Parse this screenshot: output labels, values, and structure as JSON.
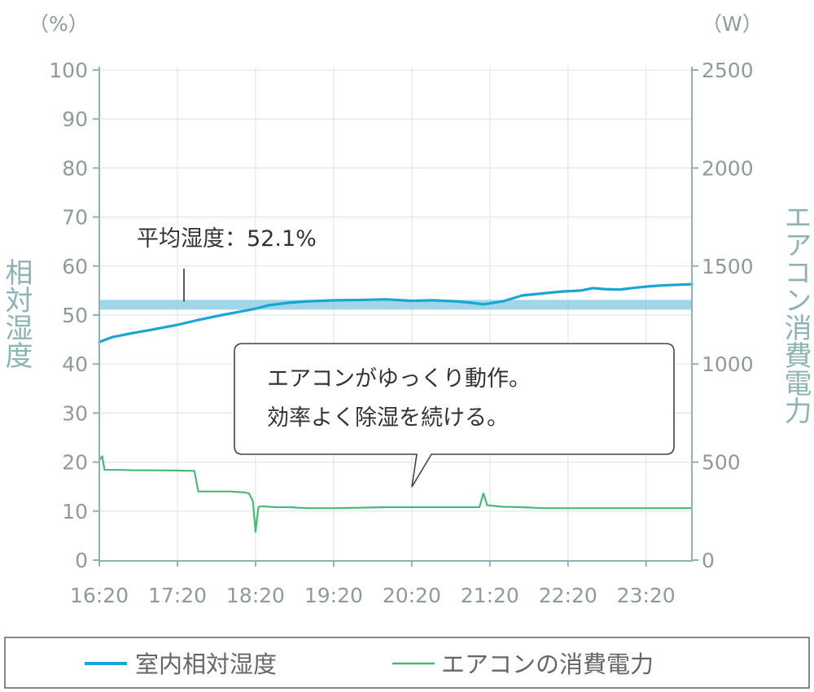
{
  "chart_data": {
    "type": "line",
    "left_unit": "（%）",
    "right_unit": "（W）",
    "ylabel_left": "相対湿度",
    "ylabel_right": "エアコン消費電力",
    "x_ticks": [
      "16:20",
      "17:20",
      "18:20",
      "19:20",
      "20:20",
      "21:20",
      "22:20",
      "23:20"
    ],
    "y_left_ticks": [
      0,
      10,
      20,
      30,
      40,
      50,
      60,
      70,
      80,
      90,
      100
    ],
    "y_right_ticks": [
      0,
      500,
      1000,
      1500,
      2000,
      2500
    ],
    "ylim_left": [
      0,
      100
    ],
    "ylim_right": [
      0,
      2500
    ],
    "x_range_hours": [
      16.333,
      23.92
    ],
    "annotation": "平均湿度：52.1%",
    "average_humidity": 52.1,
    "callout_lines": [
      "エアコンがゆっくり動作。",
      "効率よく除湿を続ける。"
    ],
    "series": [
      {
        "name": "室内相対湿度",
        "axis": "left",
        "color": "#1aa6d3",
        "points": [
          [
            16.333,
            44.5
          ],
          [
            16.5,
            45.5
          ],
          [
            16.75,
            46.3
          ],
          [
            17.0,
            47.0
          ],
          [
            17.333,
            48.0
          ],
          [
            17.6,
            49.0
          ],
          [
            17.9,
            50.0
          ],
          [
            18.1,
            50.6
          ],
          [
            18.333,
            51.3
          ],
          [
            18.5,
            52.0
          ],
          [
            18.75,
            52.5
          ],
          [
            19.0,
            52.8
          ],
          [
            19.333,
            53.0
          ],
          [
            19.75,
            53.1
          ],
          [
            20.0,
            53.2
          ],
          [
            20.333,
            52.9
          ],
          [
            20.6,
            53.0
          ],
          [
            20.9,
            52.8
          ],
          [
            21.1,
            52.5
          ],
          [
            21.25,
            52.2
          ],
          [
            21.5,
            52.8
          ],
          [
            21.75,
            54.0
          ],
          [
            22.0,
            54.4
          ],
          [
            22.25,
            54.8
          ],
          [
            22.5,
            55.0
          ],
          [
            22.65,
            55.5
          ],
          [
            22.8,
            55.3
          ],
          [
            23.0,
            55.2
          ],
          [
            23.2,
            55.6
          ],
          [
            23.4,
            55.9
          ],
          [
            23.6,
            56.1
          ],
          [
            23.92,
            56.3
          ]
        ]
      },
      {
        "name": "エアコンの消費電力",
        "axis": "right",
        "color": "#4cb877",
        "points": [
          [
            16.333,
            510
          ],
          [
            16.37,
            530
          ],
          [
            16.4,
            460
          ],
          [
            16.6,
            460
          ],
          [
            16.8,
            458
          ],
          [
            17.0,
            458
          ],
          [
            17.333,
            457
          ],
          [
            17.55,
            455
          ],
          [
            17.6,
            350
          ],
          [
            17.8,
            350
          ],
          [
            18.0,
            350
          ],
          [
            18.2,
            345
          ],
          [
            18.25,
            340
          ],
          [
            18.3,
            300
          ],
          [
            18.333,
            145
          ],
          [
            18.37,
            270
          ],
          [
            18.4,
            275
          ],
          [
            18.6,
            270
          ],
          [
            18.8,
            270
          ],
          [
            18.85,
            268
          ],
          [
            19.0,
            265
          ],
          [
            19.333,
            265
          ],
          [
            19.75,
            268
          ],
          [
            20.0,
            270
          ],
          [
            20.333,
            270
          ],
          [
            20.75,
            270
          ],
          [
            21.0,
            270
          ],
          [
            21.2,
            270
          ],
          [
            21.25,
            340
          ],
          [
            21.3,
            280
          ],
          [
            21.5,
            272
          ],
          [
            21.75,
            270
          ],
          [
            22.0,
            265
          ],
          [
            22.333,
            265
          ],
          [
            22.75,
            265
          ],
          [
            23.0,
            265
          ],
          [
            23.333,
            265
          ],
          [
            23.92,
            265
          ]
        ]
      }
    ],
    "average_band": {
      "axis": "left",
      "value": 52.1,
      "color": "#8fcfe3"
    }
  },
  "legend": {
    "items": [
      {
        "label": "室内相対湿度",
        "color": "#1aa6d3"
      },
      {
        "label": "エアコンの消費電力",
        "color": "#4cb877"
      }
    ]
  }
}
